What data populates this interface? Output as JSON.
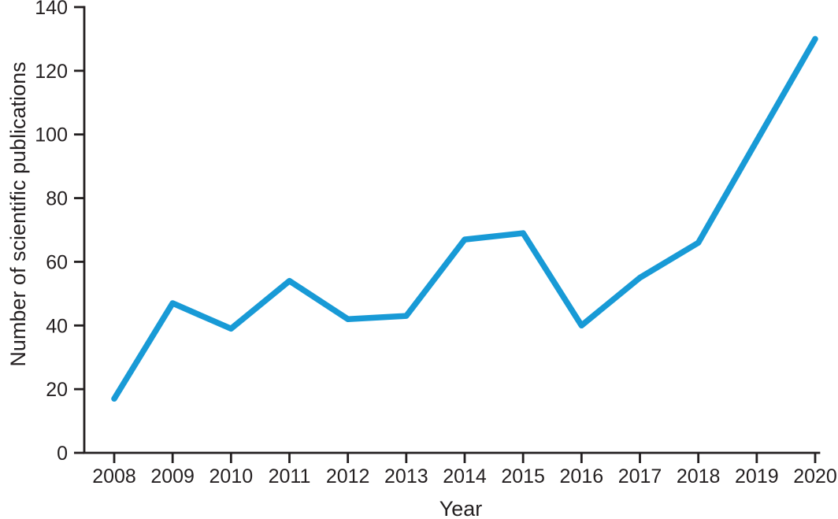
{
  "figure": {
    "background": "#ffffff"
  },
  "chart_data": {
    "type": "line",
    "title": "",
    "xlabel": "Year",
    "ylabel": "Number of scientific publications",
    "categories": [
      2008,
      2009,
      2010,
      2011,
      2012,
      2013,
      2014,
      2015,
      2016,
      2017,
      2018,
      2019,
      2020
    ],
    "values": [
      17,
      47,
      39,
      54,
      42,
      43,
      67,
      69,
      40,
      55,
      66,
      98,
      130
    ],
    "ylim": [
      0,
      140
    ],
    "ytick_step": 20,
    "yticks": [
      0,
      20,
      40,
      60,
      80,
      100,
      120,
      140
    ],
    "grid": false,
    "legend": "none",
    "line_color": "#189ad6",
    "axis_color": "#231f20"
  }
}
